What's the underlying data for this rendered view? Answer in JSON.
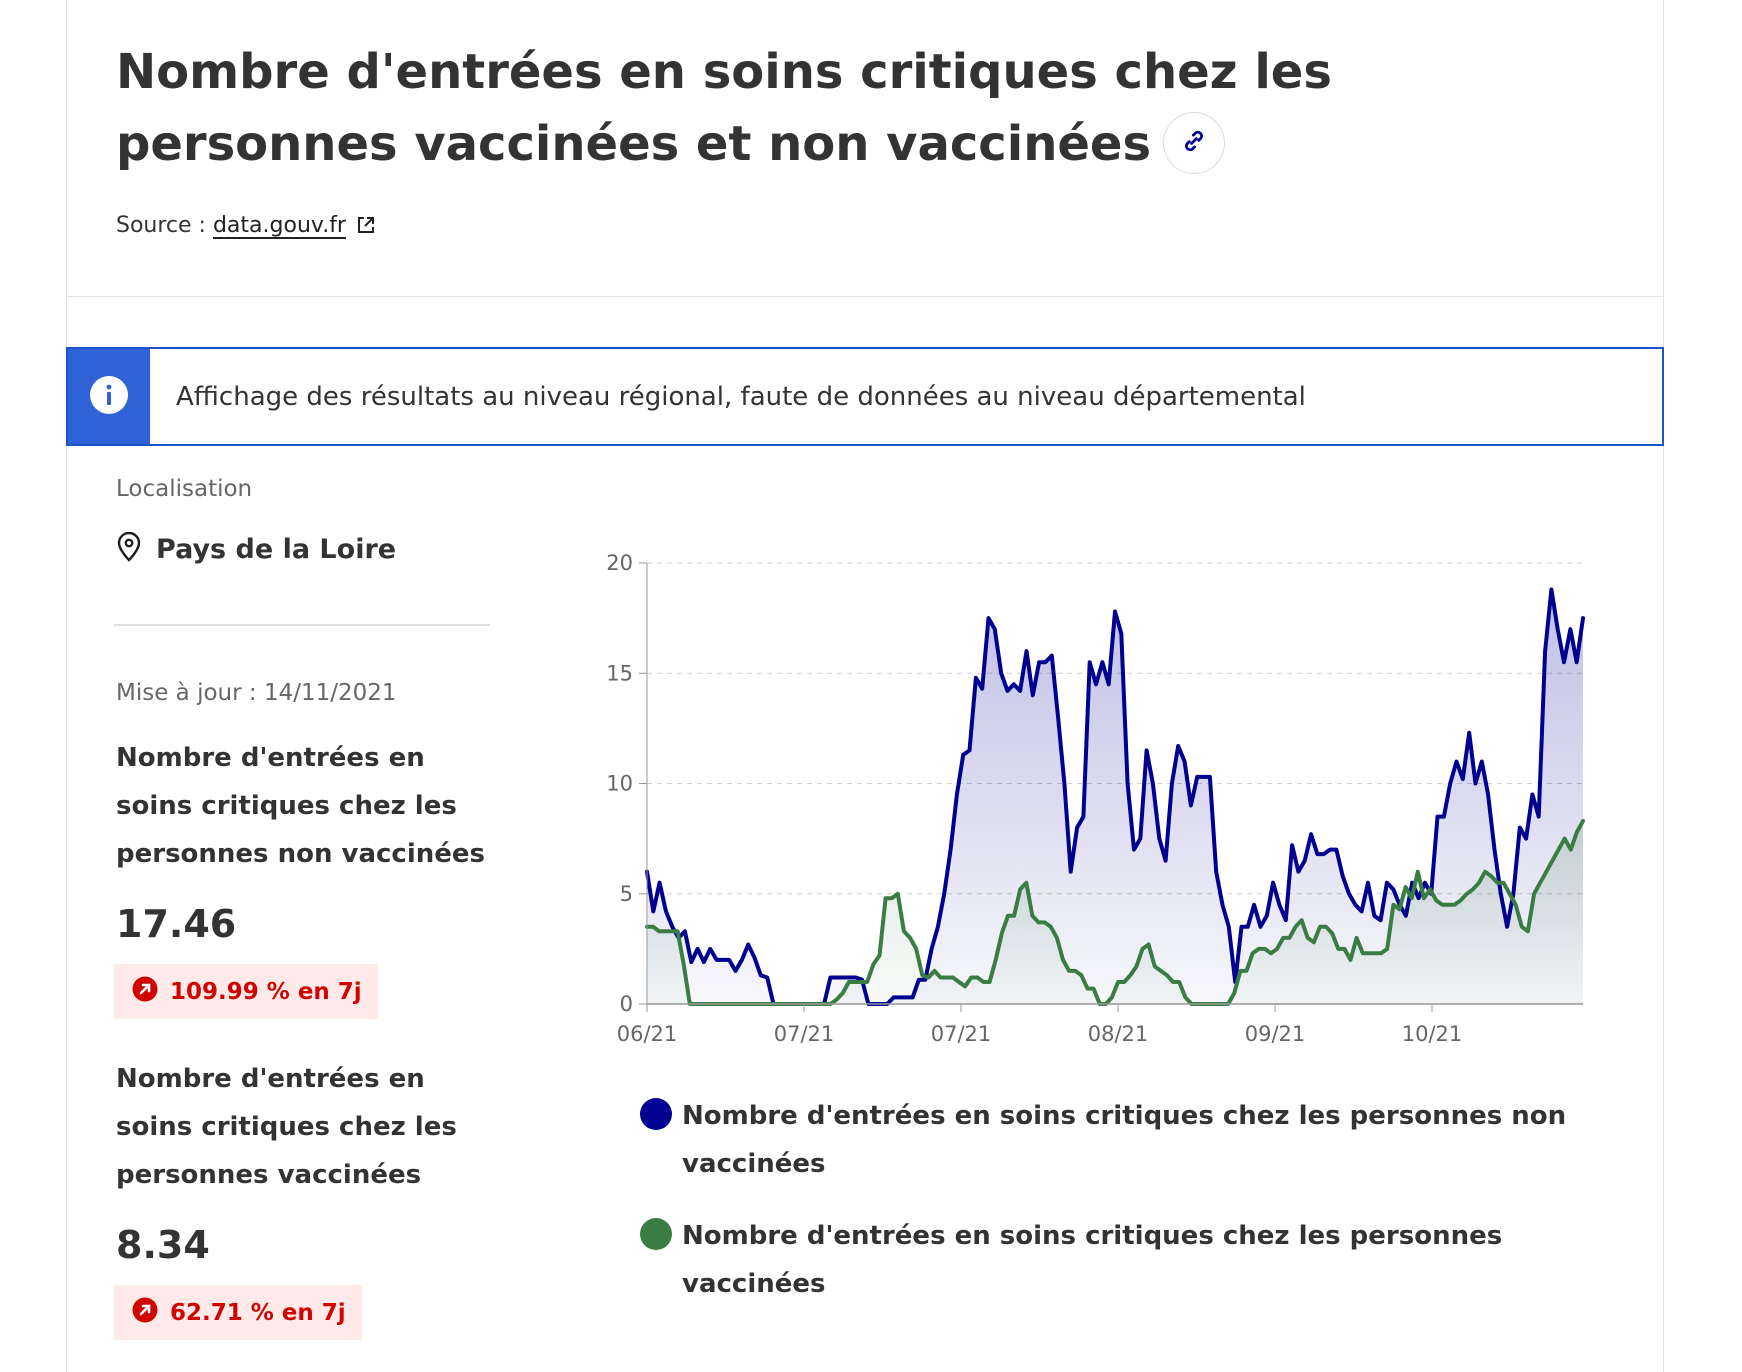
{
  "header": {
    "title": "Nombre d'entrées en soins critiques chez les personnes vaccinées et non vaccinées",
    "source_label": "Source :",
    "source_link": "data.gouv.fr"
  },
  "info_banner": {
    "text": "Affichage des résultats au niveau régional, faute de données au niveau départemental"
  },
  "location": {
    "label": "Localisation",
    "value": "Pays de la Loire"
  },
  "updated": "Mise à jour : 14/11/2021",
  "kpis": [
    {
      "label": "Nombre d'entrées en soins critiques chez les personnes non vaccinées",
      "value": "17.46",
      "change": "109.99 % en 7j"
    },
    {
      "label": "Nombre d'entrées en soins critiques chez les personnes vaccinées",
      "value": "8.34",
      "change": "62.71 % en 7j"
    }
  ],
  "colors": {
    "accent_blue": "#000091",
    "green": "#3a7d44",
    "info_blue": "#2f62d6",
    "negative_red": "#ce0500"
  },
  "icons": {
    "title_action": "link-icon",
    "source": "external-link-icon",
    "info": "info-icon",
    "location": "map-pin-icon",
    "badge": "arrow-up-right-icon"
  },
  "chart_data": {
    "type": "area",
    "ylim": [
      0,
      20
    ],
    "yticks": [
      0,
      5,
      10,
      15,
      20
    ],
    "xticks": [
      "06/21",
      "07/21",
      "07/21",
      "08/21",
      "09/21",
      "10/21"
    ],
    "grid": "horizontal dashed",
    "legend_position": "bottom",
    "series": [
      {
        "name": "Nombre d'entrées en soins critiques chez les personnes non vaccinées",
        "color": "#000091",
        "values": [
          6,
          4.2,
          5.5,
          4.2,
          3.5,
          3,
          3.3,
          1.9,
          2.5,
          1.9,
          2.5,
          2,
          2,
          2,
          1.5,
          2,
          2.7,
          2.1,
          1.3,
          1.2,
          0,
          0,
          0,
          0,
          0,
          0,
          0,
          0,
          0,
          1.2,
          1.2,
          1.2,
          1.2,
          1.2,
          1.1,
          0,
          0,
          0,
          0,
          0.3,
          0.3,
          0.3,
          0.3,
          1.1,
          1.1,
          2.5,
          3.5,
          5,
          7,
          9.5,
          11.3,
          11.5,
          14.8,
          14.3,
          17.5,
          17,
          15,
          14.2,
          14.5,
          14.2,
          16,
          14,
          15.5,
          15.5,
          15.8,
          13,
          10,
          6,
          8,
          8.5,
          15.5,
          14.5,
          15.5,
          14.5,
          17.8,
          16.8,
          10,
          7,
          7.5,
          11.5,
          10,
          7.5,
          6.5,
          10,
          11.7,
          11,
          9,
          10.3,
          10.3,
          10.3,
          6,
          4.5,
          3.5,
          1,
          3.5,
          3.5,
          4.5,
          3.5,
          4,
          5.5,
          4.5,
          3.8,
          7.2,
          6,
          6.5,
          7.7,
          6.8,
          6.8,
          7,
          7,
          5.8,
          5,
          4.5,
          4.2,
          5.5,
          4,
          3.8,
          5.5,
          5.2,
          4.5,
          4,
          5.5,
          4.8,
          5.5,
          5,
          8.5,
          8.5,
          10,
          11,
          10.2,
          12.3,
          10,
          11,
          9.5,
          7,
          5,
          3.5,
          5,
          8,
          7.5,
          9.5,
          8.5,
          16,
          18.8,
          17,
          15.5,
          17,
          15.5,
          17.5
        ]
      },
      {
        "name": "Nombre d'entrées en soins critiques chez les personnes vaccinées",
        "color": "#3a7d44",
        "values": [
          3.5,
          3.5,
          3.3,
          3.3,
          3.3,
          3.3,
          1.8,
          0,
          0,
          0,
          0,
          0,
          0,
          0,
          0,
          0,
          0,
          0,
          0,
          0,
          0,
          0,
          0,
          0,
          0,
          0,
          0,
          0,
          0,
          0,
          0,
          0.2,
          0.5,
          1,
          1,
          1,
          1,
          1.8,
          2.2,
          4.8,
          4.8,
          5,
          3.3,
          3,
          2.5,
          1.3,
          1.2,
          1.5,
          1.2,
          1.2,
          1.2,
          1,
          0.8,
          1.2,
          1.2,
          1,
          1,
          2,
          3.2,
          4,
          4,
          5.2,
          5.5,
          4,
          3.7,
          3.7,
          3.5,
          3,
          2,
          1.5,
          1.5,
          1.3,
          0.7,
          0.7,
          0,
          0,
          0.3,
          1,
          1,
          1.3,
          1.7,
          2.5,
          2.7,
          1.7,
          1.5,
          1.3,
          1,
          1,
          0.3,
          0,
          0,
          0,
          0,
          0,
          0,
          0,
          0.5,
          1.5,
          1.5,
          2.3,
          2.5,
          2.5,
          2.3,
          2.5,
          3,
          3,
          3.5,
          3.8,
          3,
          2.8,
          3.5,
          3.5,
          3.2,
          2.5,
          2.5,
          2,
          3,
          2.3,
          2.3,
          2.3,
          2.3,
          2.5,
          4.5,
          4.3,
          5.3,
          4.8,
          6,
          4.8,
          5.2,
          4.7,
          4.5,
          4.5,
          4.5,
          4.7,
          5,
          5.2,
          5.5,
          6,
          5.8,
          5.5,
          5.5,
          5,
          4.5,
          3.5,
          3.3,
          5,
          5.5,
          6,
          6.5,
          7,
          7.5,
          7,
          7.8,
          8.3
        ]
      }
    ]
  }
}
